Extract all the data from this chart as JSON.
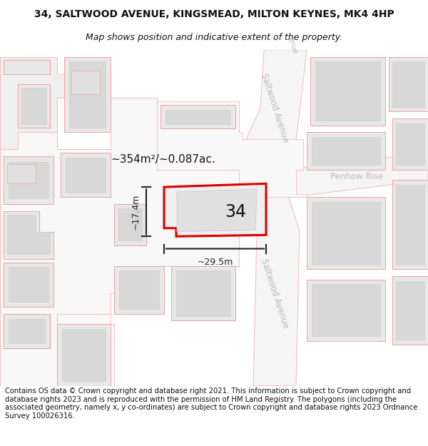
{
  "title": "34, SALTWOOD AVENUE, KINGSMEAD, MILTON KEYNES, MK4 4HP",
  "subtitle": "Map shows position and indicative extent of the property.",
  "footer": "Contains OS data © Crown copyright and database right 2021. This information is subject to Crown copyright and database rights 2023 and is reproduced with the permission of HM Land Registry. The polygons (including the associated geometry, namely x, y co-ordinates) are subject to Crown copyright and database rights 2023 Ordnance Survey 100026316.",
  "fig_bg": "#ffffff",
  "map_bg": "#ffffff",
  "title_fontsize": 10,
  "subtitle_fontsize": 9,
  "footer_fontsize": 7.2,
  "area_label": "~354m²/~0.087ac.",
  "number_label": "34",
  "width_label": "~29.5m",
  "height_label": "~17.4m",
  "road_color": "#f5c0c0",
  "building_fill": "#e8e8e8",
  "building_edge": "#f0a0a0",
  "plot_fill": "#f0f0f0",
  "plot_edge": "#dd0000",
  "inner_fill": "#e0e0e0",
  "inner_edge": "#cccccc",
  "road_fill": "#f8f8f8",
  "road_edge": "#cccccc",
  "road_label_color": "#bbbbbb",
  "dim_color": "#222222",
  "label_color": "#111111"
}
